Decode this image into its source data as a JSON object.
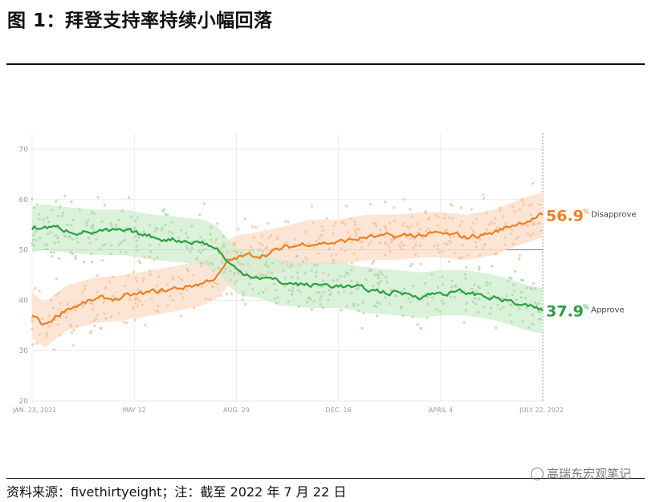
{
  "title": "图 1：拜登支持率持续小幅回落",
  "source": "资料来源：fivethirtyeight；注：截至 2022 年 7 月 22 日",
  "watermark": "高瑞东宏观笔记",
  "chart_data": {
    "type": "line",
    "ylim": [
      20,
      70
    ],
    "yticks": [
      20,
      30,
      40,
      50,
      60,
      70
    ],
    "xlim": [
      "2021-01-23",
      "2022-07-22"
    ],
    "xticks": [
      {
        "date": "2021-01-23",
        "label": "JAN. 23, 2021"
      },
      {
        "date": "2021-05-12",
        "label": "MAY 12"
      },
      {
        "date": "2021-08-29",
        "label": "AUG. 29"
      },
      {
        "date": "2021-12-16",
        "label": "DEC. 16"
      },
      {
        "date": "2022-04-04",
        "label": "APRIL 4"
      },
      {
        "date": "2022-07-22",
        "label": "JULY 22, 2022"
      }
    ],
    "reference_line": 50,
    "grid": true,
    "series": [
      {
        "name": "Disapprove",
        "color": "#f07f20",
        "end_value": "56.9",
        "x": [
          "2021-01-23",
          "2021-02-05",
          "2021-03-01",
          "2021-04-01",
          "2021-05-01",
          "2021-06-01",
          "2021-07-01",
          "2021-07-25",
          "2021-08-10",
          "2021-08-20",
          "2021-09-01",
          "2021-09-20",
          "2021-10-15",
          "2021-11-15",
          "2021-12-16",
          "2022-01-15",
          "2022-02-15",
          "2022-03-15",
          "2022-04-04",
          "2022-05-01",
          "2022-06-01",
          "2022-06-20",
          "2022-07-05",
          "2022-07-22"
        ],
        "y": [
          37,
          35,
          38.5,
          40,
          40.5,
          41.5,
          42.5,
          43.5,
          45,
          47.5,
          48.5,
          49,
          50,
          51.5,
          51.5,
          52.5,
          52.5,
          53,
          53,
          52.5,
          53.5,
          55,
          56,
          56.9
        ]
      },
      {
        "name": "Approve",
        "color": "#2aa040",
        "end_value": "37.9",
        "x": [
          "2021-01-23",
          "2021-02-05",
          "2021-03-01",
          "2021-04-01",
          "2021-05-01",
          "2021-06-01",
          "2021-07-01",
          "2021-07-25",
          "2021-08-10",
          "2021-08-20",
          "2021-09-01",
          "2021-09-20",
          "2021-10-15",
          "2021-11-15",
          "2021-12-16",
          "2022-01-15",
          "2022-02-15",
          "2022-03-15",
          "2022-04-04",
          "2022-05-01",
          "2022-06-01",
          "2022-06-20",
          "2022-07-05",
          "2022-07-22"
        ],
        "y": [
          54,
          54.5,
          54,
          53.5,
          53.5,
          52.5,
          52,
          51.5,
          50,
          47.5,
          45.5,
          45,
          43.5,
          43,
          43,
          42,
          41.5,
          41,
          41.5,
          41.5,
          40.5,
          39.5,
          38.5,
          37.9
        ]
      }
    ],
    "percent_symbol": "%"
  }
}
